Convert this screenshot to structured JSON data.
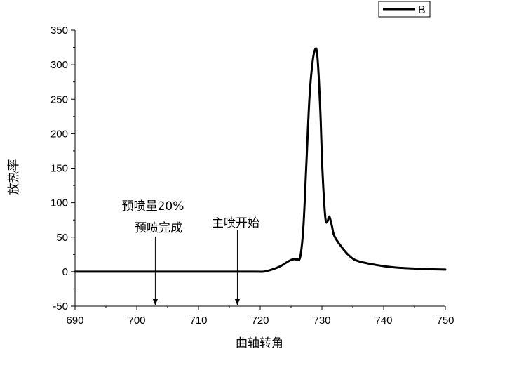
{
  "chart_data": {
    "type": "line",
    "xlabel": "曲轴转角",
    "ylabel": "放热率",
    "xlim": [
      690,
      750
    ],
    "ylim": [
      -50,
      350
    ],
    "xticks": [
      690,
      700,
      710,
      720,
      730,
      740,
      750
    ],
    "yticks": [
      -50,
      0,
      50,
      100,
      150,
      200,
      250,
      300,
      350
    ],
    "grid": false,
    "legend": "top-right",
    "series": [
      {
        "name": "B",
        "color": "#000000",
        "x": [
          690,
          700,
          710,
          719,
          720.5,
          721.5,
          722.5,
          723.5,
          724.2,
          725,
          725.5,
          726,
          726.5,
          727,
          727.5,
          728,
          728.5,
          728.9,
          729.2,
          729.5,
          729.8,
          730,
          730.3,
          730.6,
          730.9,
          731.2,
          731.6,
          732,
          733,
          734,
          735,
          736,
          738,
          740,
          742,
          745,
          748,
          750
        ],
        "y": [
          0,
          0,
          0,
          0,
          0,
          2,
          5,
          9,
          13,
          17,
          18,
          18,
          22,
          65,
          160,
          255,
          305,
          322,
          318,
          280,
          220,
          165,
          110,
          75,
          73,
          80,
          67,
          52,
          38,
          27,
          19,
          15,
          11,
          8,
          6,
          4.5,
          3.5,
          3
        ]
      }
    ],
    "annotations": [
      {
        "lines": [
          "预喷量20%",
          "预喷完成"
        ],
        "x": 703,
        "arrow": true
      },
      {
        "lines": [
          "主喷开始"
        ],
        "x": 716.3,
        "arrow": true
      }
    ]
  }
}
